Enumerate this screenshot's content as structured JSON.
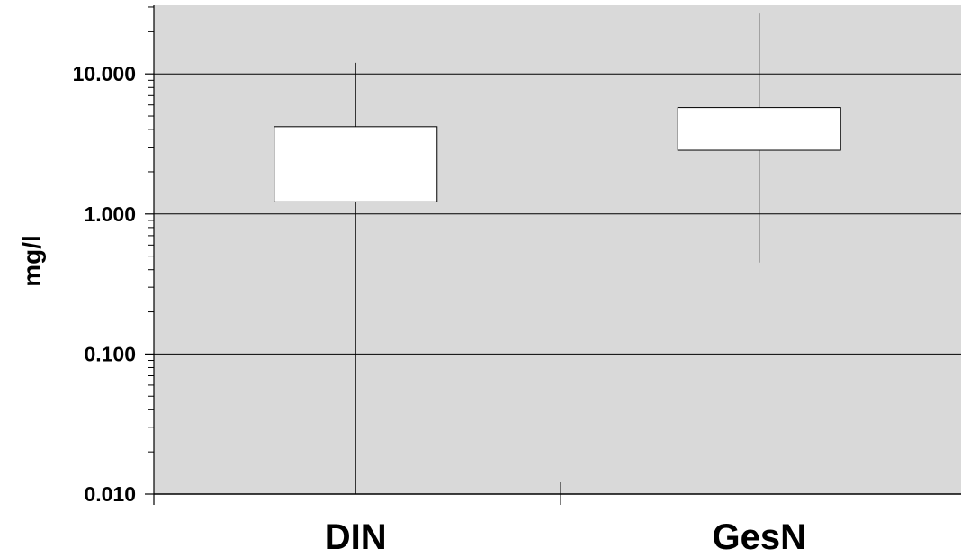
{
  "chart_data": {
    "type": "box",
    "title": "",
    "xlabel": "",
    "ylabel": "mg/l",
    "yscale": "log",
    "ylim": [
      0.01,
      30
    ],
    "yticks": [
      {
        "value": 0.01,
        "label": "0.010"
      },
      {
        "value": 0.1,
        "label": "0.100"
      },
      {
        "value": 1,
        "label": "1.000"
      },
      {
        "value": 10,
        "label": "10.000"
      }
    ],
    "categories": [
      "DIN",
      "GesN"
    ],
    "boxes": [
      {
        "name": "DIN",
        "whisker_low": 0.01,
        "q1": 1.22,
        "q3": 4.2,
        "whisker_high": 12.0
      },
      {
        "name": "GesN",
        "whisker_low": 0.45,
        "q1": 2.85,
        "q3": 5.75,
        "whisker_high": 27.0
      }
    ],
    "grid": true,
    "background": "#d9d9d9",
    "box_fill": "#ffffff",
    "line_color": "#000000"
  }
}
